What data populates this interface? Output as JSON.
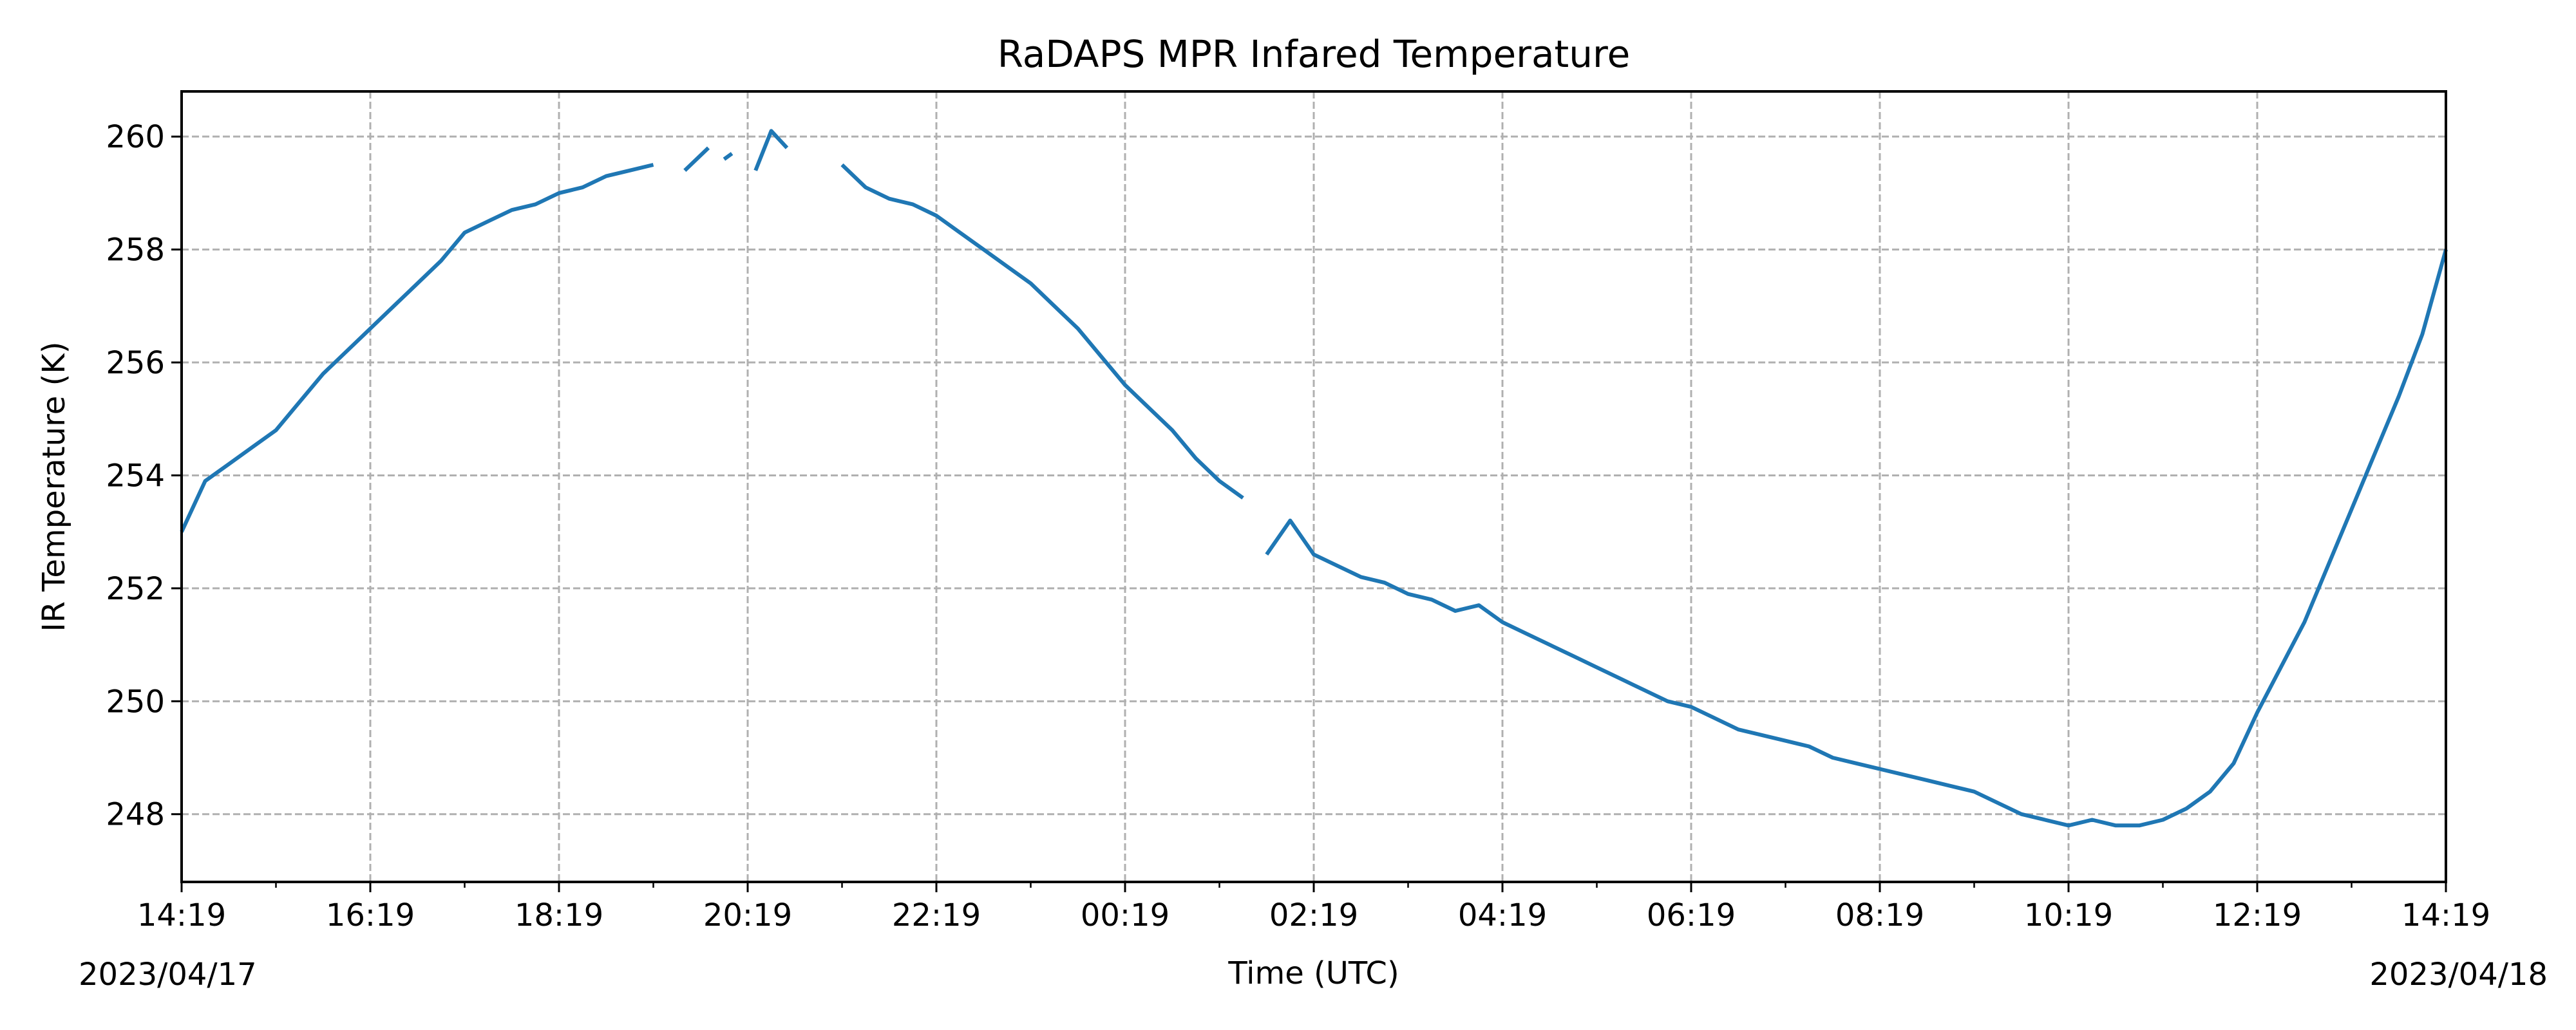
{
  "chart_data": {
    "type": "line",
    "title": "RaDAPS MPR Infared Temperature",
    "xlabel": "Time (UTC)",
    "ylabel": "IR Temperature (K)",
    "x_start_label": "2023/04/17",
    "x_end_label": "2023/04/18",
    "xlim": [
      "2023-04-17T14:19",
      "2023-04-18T14:19"
    ],
    "ylim": [
      246.8,
      260.8
    ],
    "x_ticks": [
      "14:19",
      "16:19",
      "18:19",
      "20:19",
      "22:19",
      "00:19",
      "02:19",
      "04:19",
      "06:19",
      "08:19",
      "10:19",
      "12:19",
      "14:19"
    ],
    "y_ticks": [
      248,
      250,
      252,
      254,
      256,
      258,
      260
    ],
    "grid": true,
    "line_color": "#1f77b4",
    "series": [
      {
        "segments": [
          [
            [
              "2023-04-17T14:19",
              253.0
            ],
            [
              "2023-04-17T14:34",
              253.9
            ],
            [
              "2023-04-17T14:49",
              254.2
            ],
            [
              "2023-04-17T15:04",
              254.5
            ],
            [
              "2023-04-17T15:19",
              254.8
            ],
            [
              "2023-04-17T15:34",
              255.3
            ],
            [
              "2023-04-17T15:49",
              255.8
            ],
            [
              "2023-04-17T16:04",
              256.2
            ],
            [
              "2023-04-17T16:19",
              256.6
            ],
            [
              "2023-04-17T16:34",
              257.0
            ],
            [
              "2023-04-17T16:49",
              257.4
            ],
            [
              "2023-04-17T17:04",
              257.8
            ],
            [
              "2023-04-17T17:19",
              258.3
            ],
            [
              "2023-04-17T17:34",
              258.5
            ],
            [
              "2023-04-17T17:49",
              258.7
            ],
            [
              "2023-04-17T18:04",
              258.8
            ],
            [
              "2023-04-17T18:19",
              259.0
            ],
            [
              "2023-04-17T18:34",
              259.1
            ],
            [
              "2023-04-17T18:49",
              259.3
            ],
            [
              "2023-04-17T19:04",
              259.4
            ],
            [
              "2023-04-17T19:19",
              259.5
            ]
          ],
          [
            [
              "2023-04-17T19:39",
              259.4
            ],
            [
              "2023-04-17T19:54",
              259.8
            ]
          ],
          [
            [
              "2023-04-17T20:04",
              259.6
            ],
            [
              "2023-04-17T20:09",
              259.7
            ]
          ],
          [
            [
              "2023-04-17T20:24",
              259.4
            ],
            [
              "2023-04-17T20:34",
              260.1
            ],
            [
              "2023-04-17T20:44",
              259.8
            ]
          ],
          [
            [
              "2023-04-17T21:19",
              259.5
            ],
            [
              "2023-04-17T21:34",
              259.1
            ],
            [
              "2023-04-17T21:49",
              258.9
            ],
            [
              "2023-04-17T22:04",
              258.8
            ],
            [
              "2023-04-17T22:19",
              258.6
            ],
            [
              "2023-04-17T22:34",
              258.3
            ],
            [
              "2023-04-17T22:49",
              258.0
            ],
            [
              "2023-04-17T23:04",
              257.7
            ],
            [
              "2023-04-17T23:19",
              257.4
            ],
            [
              "2023-04-17T23:34",
              257.0
            ],
            [
              "2023-04-17T23:49",
              256.6
            ],
            [
              "2023-04-18T00:04",
              256.1
            ],
            [
              "2023-04-18T00:19",
              255.6
            ],
            [
              "2023-04-18T00:34",
              255.2
            ],
            [
              "2023-04-18T00:49",
              254.8
            ],
            [
              "2023-04-18T01:04",
              254.3
            ],
            [
              "2023-04-18T01:19",
              253.9
            ],
            [
              "2023-04-18T01:34",
              253.6
            ]
          ],
          [
            [
              "2023-04-18T01:49",
              252.6
            ],
            [
              "2023-04-18T02:04",
              253.2
            ],
            [
              "2023-04-18T02:19",
              252.6
            ],
            [
              "2023-04-18T02:34",
              252.4
            ],
            [
              "2023-04-18T02:49",
              252.2
            ],
            [
              "2023-04-18T03:04",
              252.1
            ],
            [
              "2023-04-18T03:19",
              251.9
            ],
            [
              "2023-04-18T03:34",
              251.8
            ],
            [
              "2023-04-18T03:49",
              251.6
            ],
            [
              "2023-04-18T04:04",
              251.7
            ],
            [
              "2023-04-18T04:19",
              251.4
            ],
            [
              "2023-04-18T04:34",
              251.2
            ],
            [
              "2023-04-18T04:49",
              251.0
            ],
            [
              "2023-04-18T05:04",
              250.8
            ],
            [
              "2023-04-18T05:19",
              250.6
            ],
            [
              "2023-04-18T05:34",
              250.4
            ],
            [
              "2023-04-18T05:49",
              250.2
            ],
            [
              "2023-04-18T06:04",
              250.0
            ],
            [
              "2023-04-18T06:19",
              249.9
            ],
            [
              "2023-04-18T06:34",
              249.7
            ],
            [
              "2023-04-18T06:49",
              249.5
            ],
            [
              "2023-04-18T07:04",
              249.4
            ],
            [
              "2023-04-18T07:19",
              249.3
            ],
            [
              "2023-04-18T07:34",
              249.2
            ],
            [
              "2023-04-18T07:49",
              249.0
            ],
            [
              "2023-04-18T08:04",
              248.9
            ],
            [
              "2023-04-18T08:19",
              248.8
            ],
            [
              "2023-04-18T08:34",
              248.7
            ],
            [
              "2023-04-18T08:49",
              248.6
            ],
            [
              "2023-04-18T09:04",
              248.5
            ],
            [
              "2023-04-18T09:19",
              248.4
            ],
            [
              "2023-04-18T09:34",
              248.2
            ],
            [
              "2023-04-18T09:49",
              248.0
            ],
            [
              "2023-04-18T10:04",
              247.9
            ],
            [
              "2023-04-18T10:19",
              247.8
            ],
            [
              "2023-04-18T10:34",
              247.9
            ],
            [
              "2023-04-18T10:49",
              247.8
            ],
            [
              "2023-04-18T11:04",
              247.8
            ],
            [
              "2023-04-18T11:19",
              247.9
            ],
            [
              "2023-04-18T11:34",
              248.1
            ],
            [
              "2023-04-18T11:49",
              248.4
            ],
            [
              "2023-04-18T12:04",
              248.9
            ],
            [
              "2023-04-18T12:19",
              249.8
            ],
            [
              "2023-04-18T12:34",
              250.6
            ],
            [
              "2023-04-18T12:49",
              251.4
            ],
            [
              "2023-04-18T13:04",
              252.4
            ],
            [
              "2023-04-18T13:19",
              253.4
            ],
            [
              "2023-04-18T13:34",
              254.4
            ],
            [
              "2023-04-18T13:49",
              255.4
            ],
            [
              "2023-04-18T14:04",
              256.5
            ],
            [
              "2023-04-18T14:19",
              258.0
            ]
          ]
        ]
      }
    ]
  }
}
